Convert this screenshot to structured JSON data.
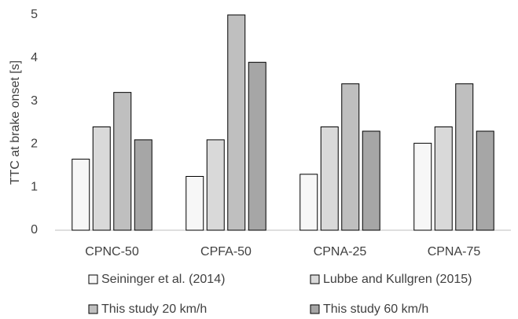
{
  "chart_data": {
    "type": "bar",
    "y_label": "TTC at brake onset [s]",
    "categories": [
      "CPNC-50",
      "CPFA-50",
      "CPNA-25",
      "CPNA-75"
    ],
    "series": [
      {
        "name": "Seininger et al. (2014)",
        "color": "#f7f7f7",
        "values": [
          1.65,
          1.25,
          1.3,
          2.02
        ]
      },
      {
        "name": "Lubbe and Kullgren (2015)",
        "color": "#d9d9d9",
        "values": [
          2.4,
          2.1,
          2.4,
          2.4
        ]
      },
      {
        "name": "This study 20 km/h",
        "color": "#bfbfbf",
        "values": [
          3.2,
          5.0,
          3.4,
          3.4
        ]
      },
      {
        "name": "This study 60 km/h",
        "color": "#a6a6a6",
        "values": [
          2.1,
          3.9,
          2.3,
          2.3
        ]
      }
    ],
    "ylim": [
      0,
      5
    ],
    "yticks": [
      0,
      1,
      2,
      3,
      4,
      5
    ],
    "grid": false
  }
}
